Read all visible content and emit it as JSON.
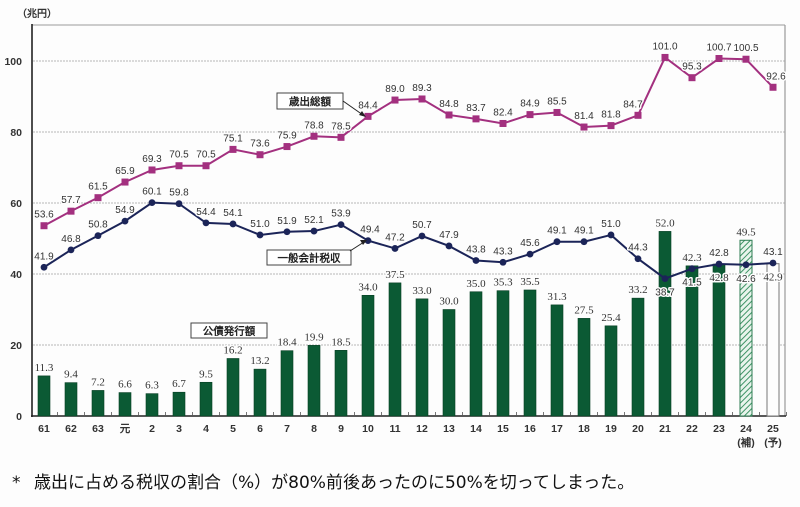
{
  "chart_data": {
    "type": "bar+line",
    "title": "",
    "ylabel": "（兆円）",
    "xlabel": "",
    "ylim": [
      0,
      110
    ],
    "y_ticks": [
      0,
      20,
      40,
      60,
      80,
      100
    ],
    "grid": true,
    "categories": [
      "61",
      "62",
      "63",
      "元",
      "2",
      "3",
      "4",
      "5",
      "6",
      "7",
      "8",
      "9",
      "10",
      "11",
      "12",
      "13",
      "14",
      "15",
      "16",
      "17",
      "18",
      "19",
      "20",
      "21",
      "22",
      "23",
      "24",
      "25"
    ],
    "category_sublabels": [
      "",
      "",
      "",
      "",
      "",
      "",
      "",
      "",
      "",
      "",
      "",
      "",
      "",
      "",
      "",
      "",
      "",
      "",
      "",
      "",
      "",
      "",
      "",
      "",
      "",
      "",
      "(補)",
      "(予)"
    ],
    "series": [
      {
        "name": "歳出総額",
        "type": "line",
        "color": "#a3307f",
        "marker": "square",
        "values": [
          53.6,
          57.7,
          61.5,
          65.9,
          69.3,
          70.5,
          70.5,
          75.1,
          73.6,
          75.9,
          78.8,
          78.5,
          84.4,
          89.0,
          89.3,
          84.8,
          83.7,
          82.4,
          84.9,
          85.5,
          81.4,
          81.8,
          84.7,
          101.0,
          95.3,
          100.7,
          100.5,
          92.6
        ],
        "labels": [
          "53.6",
          "57.7",
          "61.5",
          "65.9",
          "69.3",
          "70.5",
          "70.5",
          "75.1",
          "73.6",
          "75.9",
          "78.8",
          "78.5",
          "84.4",
          "89.0",
          "89.3",
          "84.8",
          "83.7",
          "82.4",
          "84.9",
          "85.5",
          "81.4",
          "81.8",
          "84.7",
          "101.0",
          "95.3",
          "100.7",
          "100.5",
          "92.6"
        ]
      },
      {
        "name": "一般会計税収",
        "type": "line",
        "color": "#1b2458",
        "marker": "circle",
        "values": [
          41.9,
          46.8,
          50.8,
          54.9,
          60.1,
          59.8,
          54.4,
          54.1,
          51.0,
          51.9,
          52.1,
          53.9,
          49.4,
          47.2,
          50.7,
          47.9,
          43.8,
          43.3,
          45.6,
          49.1,
          49.1,
          51.0,
          44.3,
          38.7,
          41.5,
          42.8,
          42.6,
          43.1
        ],
        "labels": [
          "41.9",
          "46.8",
          "50.8",
          "54.9",
          "60.1",
          "59.8",
          "54.4",
          "54.1",
          "51.0",
          "51.9",
          "52.1",
          "53.9",
          "49.4",
          "47.2",
          "50.7",
          "47.9",
          "43.8",
          "43.3",
          "45.6",
          "49.1",
          "49.1",
          "51.0",
          "44.3",
          "38.7",
          "41.5",
          "42.8",
          "42.6",
          "43.1"
        ]
      },
      {
        "name": "公債発行額",
        "type": "bar",
        "color": "#0b5a34",
        "values": [
          11.3,
          9.4,
          7.2,
          6.6,
          6.3,
          6.7,
          9.5,
          16.2,
          13.2,
          18.4,
          19.9,
          18.5,
          34.0,
          37.5,
          33.0,
          30.0,
          35.0,
          35.3,
          35.5,
          31.3,
          27.5,
          25.4,
          33.2,
          52.0,
          42.3,
          42.8,
          49.5,
          42.9
        ],
        "labels": [
          "11.3",
          "9.4",
          "7.2",
          "6.6",
          "6.3",
          "6.7",
          "9.5",
          "16.2",
          "13.2",
          "18.4",
          "19.9",
          "18.5",
          "34.0",
          "37.5",
          "33.0",
          "30.0",
          "35.0",
          "35.3",
          "35.5",
          "31.3",
          "27.5",
          "25.4",
          "33.2",
          "52.0",
          "42.3",
          "42.8",
          "49.5",
          "42.9"
        ],
        "bar_styles": [
          "solid",
          "solid",
          "solid",
          "solid",
          "solid",
          "solid",
          "solid",
          "solid",
          "solid",
          "solid",
          "solid",
          "solid",
          "solid",
          "solid",
          "solid",
          "solid",
          "solid",
          "solid",
          "solid",
          "solid",
          "solid",
          "solid",
          "solid",
          "solid",
          "solid",
          "solid",
          "hatched",
          "outline"
        ]
      }
    ],
    "legend": [
      "歳出総額",
      "一般会計税収",
      "公債発行額"
    ]
  },
  "footnote": {
    "marker": "*",
    "text": "歳出に占める税収の割合（%）が80%前後あったのに50%を切ってしまった。"
  }
}
